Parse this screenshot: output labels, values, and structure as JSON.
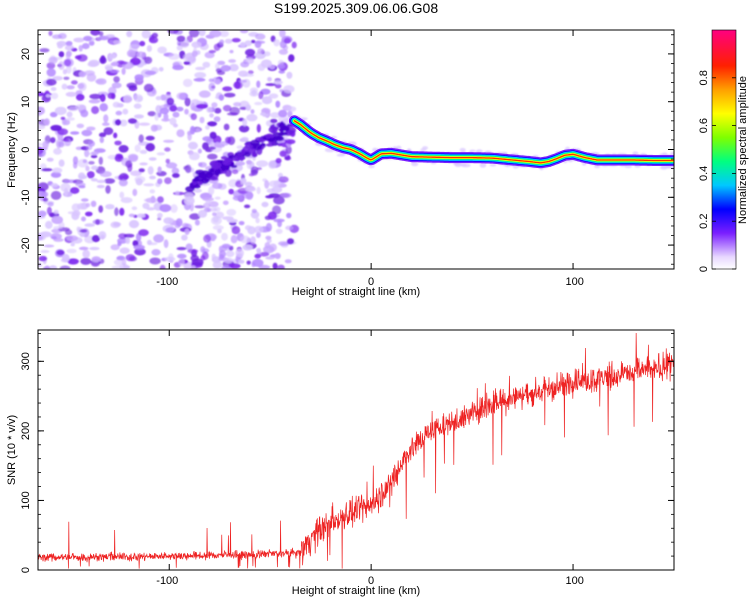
{
  "title": "S199.2025.309.06.06.G08",
  "chart_data": [
    {
      "type": "heatmap",
      "name": "spectrogram",
      "xlabel": "Height of straight line (km)",
      "ylabel": "Frequency (Hz)",
      "xlim": [
        -165,
        150
      ],
      "ylim": [
        -25,
        25
      ],
      "xticks": [
        -100,
        0,
        100
      ],
      "yticks": [
        -20,
        -10,
        0,
        10,
        20
      ],
      "colorbar": {
        "label": "Normalized spectral amplitude",
        "range": [
          0,
          1
        ],
        "ticks": [
          0.0,
          0.2,
          0.4,
          0.6,
          0.8
        ]
      },
      "ridge": {
        "x": [
          -38,
          -35,
          -30,
          -26,
          -22,
          -18,
          -14,
          -10,
          -6,
          -2,
          0,
          5,
          10,
          20,
          30,
          40,
          50,
          60,
          70,
          78,
          84,
          88,
          92,
          96,
          100,
          106,
          112,
          120,
          130,
          140,
          148
        ],
        "y": [
          6,
          5.2,
          3.5,
          2.5,
          1.8,
          1.0,
          0.4,
          0.0,
          -0.8,
          -1.8,
          -2.2,
          -0.9,
          -0.8,
          -1.5,
          -1.6,
          -1.7,
          -1.7,
          -1.8,
          -2.2,
          -2.5,
          -2.8,
          -2.5,
          -1.9,
          -1.2,
          -1.0,
          -1.7,
          -2.2,
          -2.2,
          -2.2,
          -2.3,
          -2.3
        ]
      }
    },
    {
      "type": "line",
      "name": "snr",
      "xlabel": "Height of straight line (km)",
      "ylabel": "SNR (10 * v/v)",
      "xlim": [
        -165,
        150
      ],
      "ylim": [
        0,
        345
      ],
      "xticks": [
        -100,
        0,
        100
      ],
      "yticks": [
        0,
        100,
        200,
        300
      ],
      "color": "#ee2222",
      "trend": {
        "x": [
          -165,
          -120,
          -80,
          -50,
          -35,
          -30,
          -20,
          -10,
          -5,
          0,
          5,
          10,
          15,
          20,
          25,
          30,
          40,
          50,
          60,
          70,
          80,
          90,
          100,
          110,
          120,
          130,
          140,
          150
        ],
        "y": [
          18,
          19,
          21,
          23,
          25,
          45,
          70,
          80,
          85,
          95,
          110,
          125,
          155,
          175,
          190,
          200,
          212,
          225,
          238,
          248,
          255,
          262,
          270,
          275,
          280,
          285,
          290,
          295
        ]
      }
    }
  ]
}
